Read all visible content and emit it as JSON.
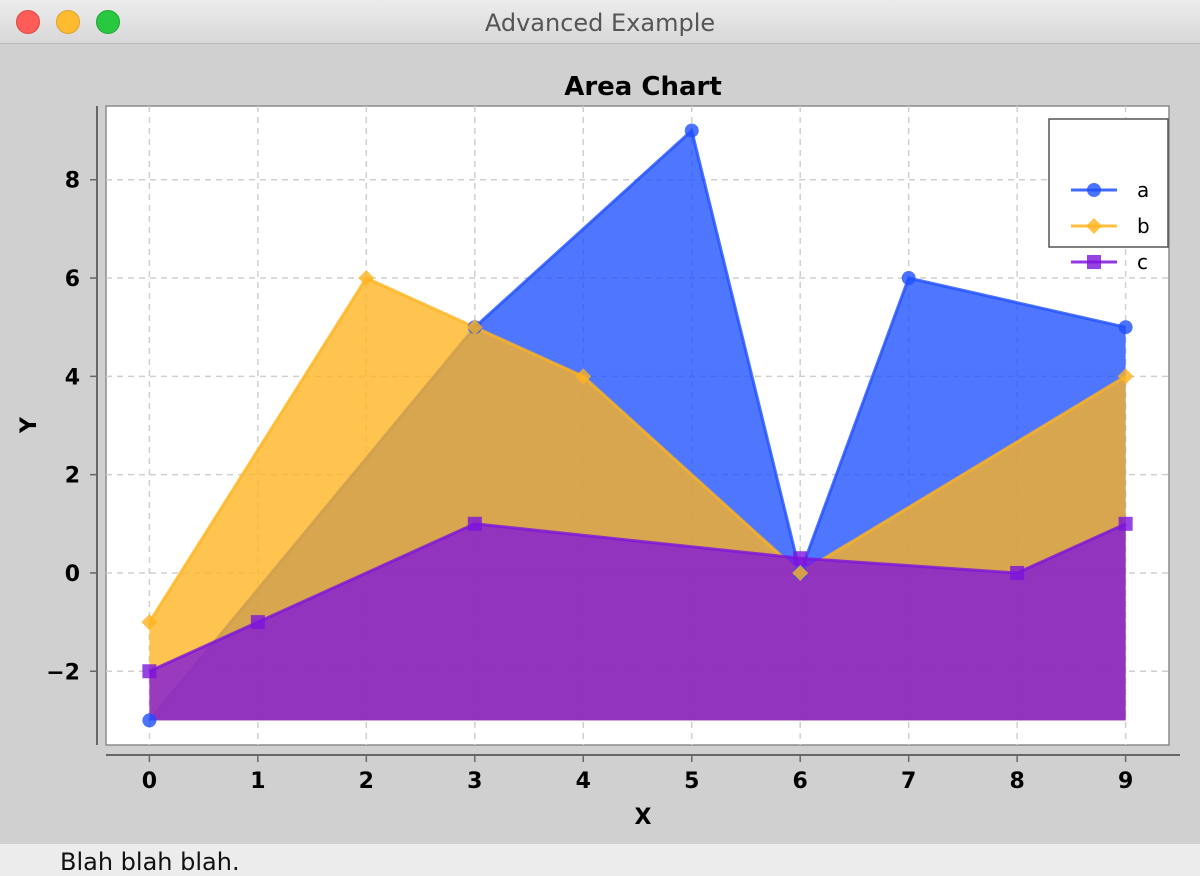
{
  "window": {
    "title": "Advanced Example"
  },
  "status": {
    "text": "Blah blah blah."
  },
  "chart_data": {
    "type": "area",
    "title": "Area Chart",
    "xlabel": "X",
    "ylabel": "Y",
    "x": [
      0,
      1,
      2,
      3,
      4,
      5,
      6,
      7,
      8,
      9
    ],
    "xlim": [
      -0.4,
      9.4
    ],
    "ylim": [
      -3.5,
      9.5
    ],
    "xticks": [
      "0",
      "1",
      "2",
      "3",
      "4",
      "5",
      "6",
      "7",
      "8",
      "9"
    ],
    "yticks": [
      "−2",
      "0",
      "2",
      "4",
      "6",
      "8"
    ],
    "ytick_values": [
      -2,
      0,
      2,
      4,
      6,
      8
    ],
    "grid": true,
    "legend": "top-right",
    "series": [
      {
        "name": "a",
        "marker": "circle",
        "color": "#1e50ff",
        "x": [
          0,
          3,
          5,
          6,
          7,
          9
        ],
        "values": [
          -3,
          5,
          9,
          0,
          6,
          5
        ]
      },
      {
        "name": "b",
        "marker": "diamond",
        "color": "#ffb41e",
        "x": [
          0,
          2,
          3,
          4,
          6,
          9
        ],
        "values": [
          -1,
          6,
          5,
          4,
          0,
          4
        ]
      },
      {
        "name": "c",
        "marker": "square",
        "color": "#7d14dc",
        "x": [
          0,
          1,
          3,
          6,
          8,
          9
        ],
        "values": [
          -2,
          -1,
          1,
          0.3,
          0,
          1
        ]
      }
    ]
  }
}
